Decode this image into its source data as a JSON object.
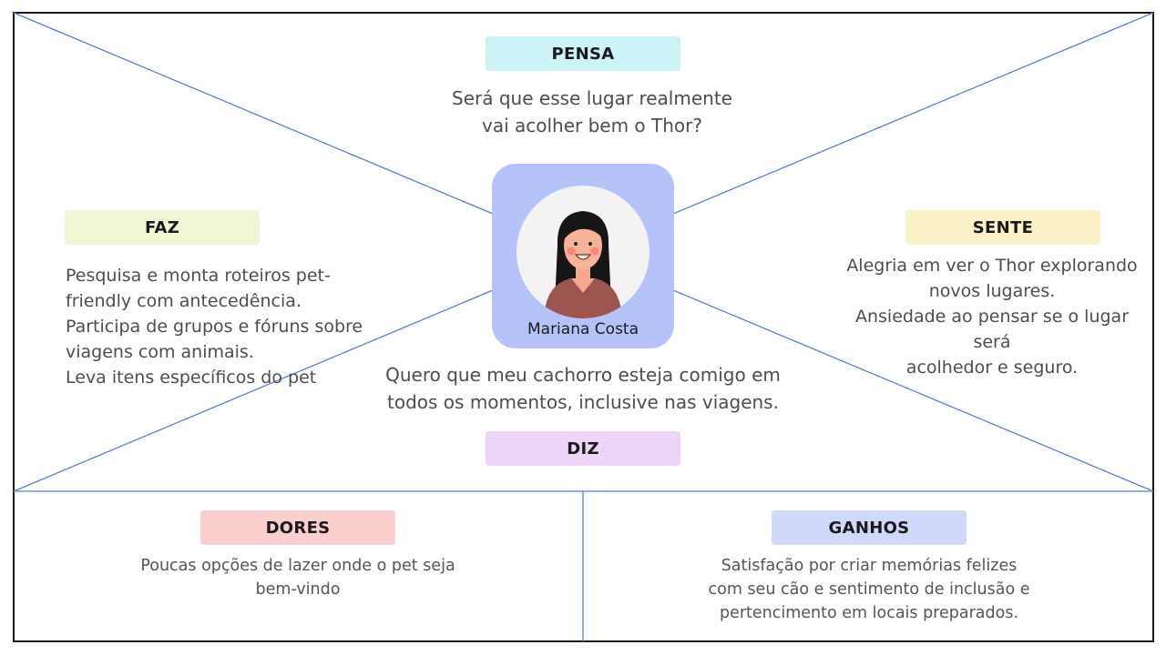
{
  "colors": {
    "line": "#5a7fd6",
    "frame": "#1a1a1a",
    "pensa_tag": "#ccf3f5",
    "faz_tag": "#eef6d6",
    "sente_tag": "#fbf1c6",
    "diz_tag": "#ecd5f7",
    "dores_tag": "#fccfcf",
    "ganhos_tag": "#d0d9fb",
    "persona_card": "#b6c3fb"
  },
  "persona": {
    "name": "Mariana Costa",
    "avatar_icon": "woman-avatar-icon"
  },
  "pensa": {
    "label": "PENSA",
    "text": [
      "Será que esse lugar realmente",
      "vai acolher bem o Thor?"
    ]
  },
  "faz": {
    "label": "FAZ",
    "text": [
      "Pesquisa e monta roteiros pet-",
      "friendly com antecedência.",
      "Participa de grupos e fóruns sobre",
      "viagens com animais.",
      "Leva itens específicos do pet"
    ]
  },
  "sente": {
    "label": "SENTE",
    "text": [
      "Alegria em ver o Thor explorando",
      "novos lugares.",
      "Ansiedade ao pensar se o lugar será",
      "acolhedor e seguro."
    ]
  },
  "diz": {
    "label": "DIZ",
    "text": [
      "Quero que meu cachorro esteja comigo em",
      "todos os momentos, inclusive nas viagens."
    ]
  },
  "dores": {
    "label": "DORES",
    "text": [
      "Poucas opções de lazer onde o pet seja",
      "bem-vindo"
    ]
  },
  "ganhos": {
    "label": "GANHOS",
    "text": [
      "Satisfação por criar memórias felizes",
      "com seu cão e sentimento de inclusão e",
      "pertencimento em locais preparados."
    ]
  }
}
